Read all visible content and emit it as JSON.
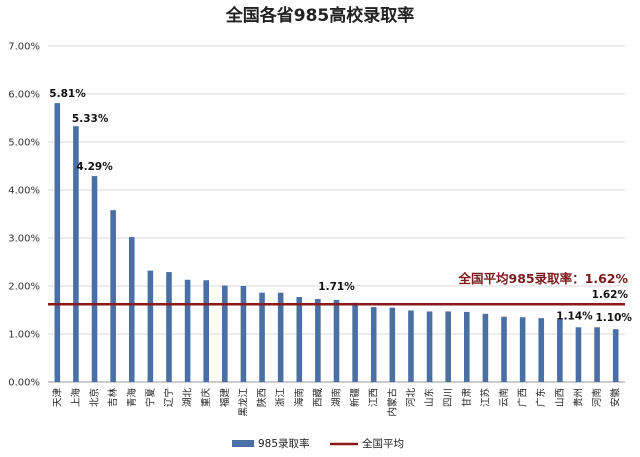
{
  "chart_data": {
    "type": "bar",
    "title": "全国各省985高校录取率",
    "ylim": [
      0,
      7
    ],
    "yticks": [
      "0.00%",
      "1.00%",
      "2.00%",
      "3.00%",
      "4.00%",
      "5.00%",
      "6.00%",
      "7.00%"
    ],
    "grid": true,
    "categories": [
      "天津",
      "上海",
      "北京",
      "吉林",
      "青海",
      "宁夏",
      "辽宁",
      "湖北",
      "重庆",
      "福建",
      "黑龙江",
      "陕西",
      "浙江",
      "海南",
      "西藏",
      "湖南",
      "新疆",
      "江西",
      "内蒙古",
      "河北",
      "山东",
      "四川",
      "甘肃",
      "江苏",
      "云南",
      "广西",
      "广东",
      "山西",
      "贵州",
      "河南",
      "安徽"
    ],
    "series": [
      {
        "name": "985录取率",
        "color": "#4a6fa5",
        "values": [
          5.81,
          5.33,
          4.29,
          3.58,
          3.02,
          2.32,
          2.29,
          2.13,
          2.12,
          2.01,
          2.0,
          1.86,
          1.86,
          1.77,
          1.73,
          1.71,
          1.65,
          1.56,
          1.55,
          1.49,
          1.47,
          1.47,
          1.46,
          1.42,
          1.36,
          1.35,
          1.33,
          1.3,
          1.14,
          1.14,
          1.1
        ]
      }
    ],
    "data_labels": [
      {
        "index": 0,
        "text": "5.81%"
      },
      {
        "index": 1,
        "text": "5.33%"
      },
      {
        "index": 2,
        "text": "4.29%"
      },
      {
        "index": 15,
        "text": "1.71%"
      },
      {
        "index": 28,
        "text": "1.14%"
      },
      {
        "index": 30,
        "text": "1.10%"
      }
    ],
    "average": {
      "name": "全国平均",
      "value": 1.62,
      "label": "1.62%",
      "annotation": "全国平均985录取率：1.62%",
      "color": "#8b1a1a"
    },
    "legend": {
      "position": "bottom",
      "items": [
        "985录取率",
        "全国平均"
      ]
    }
  }
}
